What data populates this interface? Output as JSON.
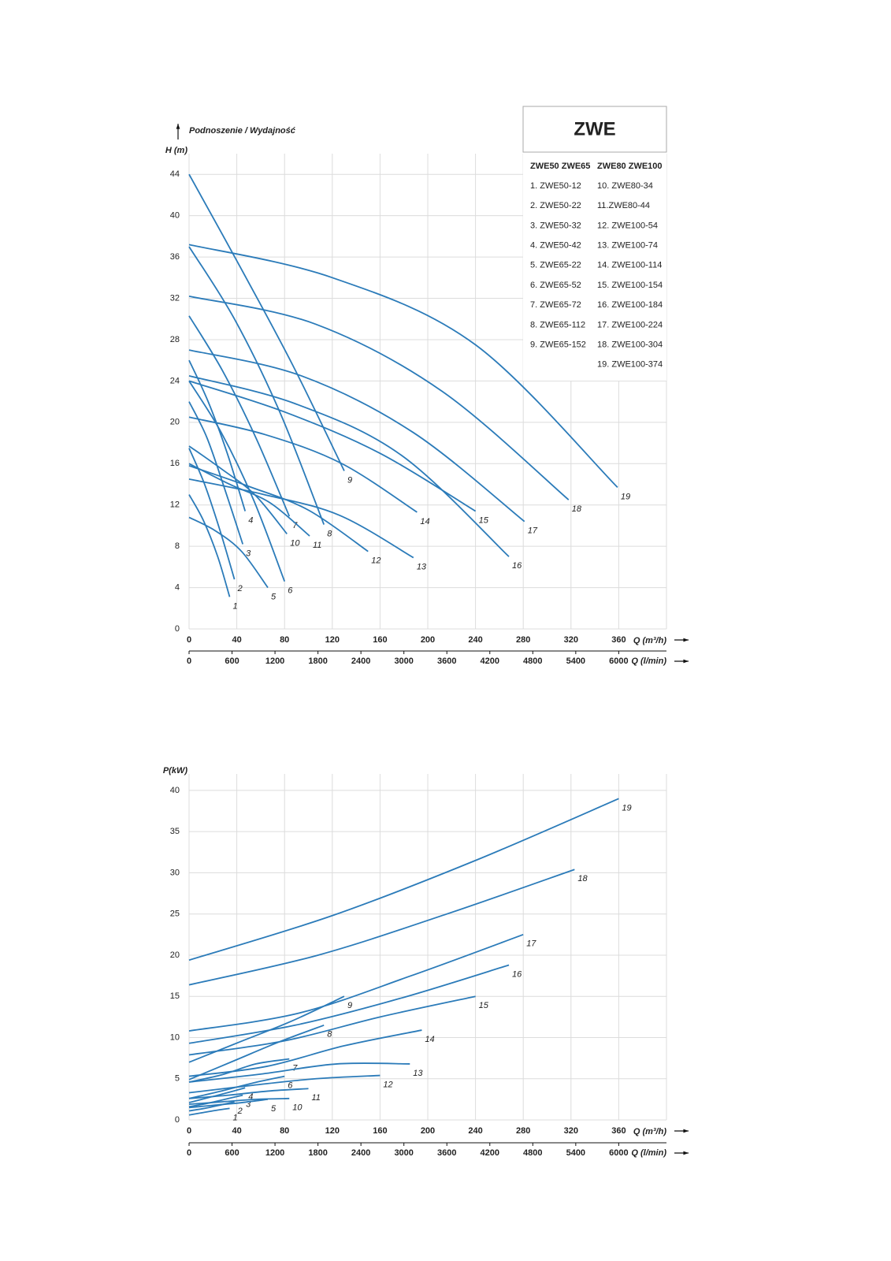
{
  "chart_data": [
    {
      "type": "line",
      "title": "Podnoszenie / Wydajność",
      "y_label": "H (m)",
      "x_label": "Q (m³/h)",
      "x2_label": "Q (l/min)",
      "xlim": [
        0,
        400
      ],
      "xticks": [
        0,
        40,
        80,
        120,
        160,
        200,
        240,
        280,
        320,
        360
      ],
      "x2lim": [
        0,
        6667
      ],
      "x2ticks": [
        0,
        600,
        1200,
        1800,
        2400,
        3000,
        3600,
        4200,
        4800,
        5400,
        6000
      ],
      "ylim": [
        0,
        46
      ],
      "yticks": [
        0,
        4,
        8,
        12,
        16,
        20,
        24,
        28,
        32,
        36,
        40,
        44
      ],
      "grid": true,
      "color": "#2b7bb9",
      "legend": {
        "title": "ZWE",
        "columns": [
          {
            "header": "ZWE50 ZWE65",
            "items": [
              "1. ZWE50-12",
              "2. ZWE50-22",
              "3. ZWE50-32",
              "4. ZWE50-42",
              "5. ZWE65-22",
              "6. ZWE65-52",
              "7. ZWE65-72",
              "8. ZWE65-112",
              "9. ZWE65-152"
            ]
          },
          {
            "header": "ZWE80 ZWE100",
            "items": [
              "10. ZWE80-34",
              "11.ZWE80-44",
              "12. ZWE100-54",
              "13. ZWE100-74",
              "14. ZWE100-114",
              "15. ZWE100-154",
              "16. ZWE100-184",
              "17. ZWE100-224",
              "18. ZWE100-304",
              "19. ZWE100-374"
            ]
          }
        ]
      },
      "series": [
        {
          "name": "1",
          "x": [
            0,
            12,
            24,
            34
          ],
          "values": [
            13,
            10.5,
            7,
            3.1
          ]
        },
        {
          "name": "2",
          "x": [
            0,
            13,
            26,
            38
          ],
          "values": [
            17.5,
            14,
            9.5,
            4.8
          ]
        },
        {
          "name": "3",
          "x": [
            0,
            15,
            30,
            45
          ],
          "values": [
            22,
            18.5,
            13.5,
            8.2
          ]
        },
        {
          "name": "4",
          "x": [
            0,
            16,
            32,
            47
          ],
          "values": [
            26,
            22,
            17,
            11.4
          ]
        },
        {
          "name": "5",
          "x": [
            0,
            22,
            44,
            66
          ],
          "values": [
            10.8,
            9.5,
            7.5,
            4
          ]
        },
        {
          "name": "6",
          "x": [
            0,
            27,
            54,
            80
          ],
          "values": [
            24,
            19,
            12.5,
            4.6
          ]
        },
        {
          "name": "7",
          "x": [
            0,
            28,
            56,
            84
          ],
          "values": [
            30.3,
            25,
            18.5,
            10.9
          ]
        },
        {
          "name": "8",
          "x": [
            0,
            38,
            76,
            113
          ],
          "values": [
            37,
            30,
            21,
            10.1
          ]
        },
        {
          "name": "9",
          "x": [
            0,
            43,
            87,
            130
          ],
          "values": [
            44,
            35,
            25.5,
            15.3
          ]
        },
        {
          "name": "10",
          "x": [
            0,
            27,
            55,
            82
          ],
          "values": [
            17.7,
            15.5,
            13,
            9.2
          ]
        },
        {
          "name": "11",
          "x": [
            0,
            34,
            68,
            101
          ],
          "values": [
            16,
            14,
            12.2,
            9
          ]
        },
        {
          "name": "12",
          "x": [
            0,
            50,
            100,
            150
          ],
          "values": [
            15.8,
            13.8,
            11.5,
            7.5
          ]
        },
        {
          "name": "13",
          "x": [
            0,
            63,
            126,
            188
          ],
          "values": [
            14.5,
            13,
            11,
            6.9
          ]
        },
        {
          "name": "14",
          "x": [
            0,
            64,
            128,
            191
          ],
          "values": [
            20.5,
            18.8,
            16,
            11.3
          ]
        },
        {
          "name": "15",
          "x": [
            0,
            80,
            160,
            240
          ],
          "values": [
            24,
            21,
            17,
            11.4
          ]
        },
        {
          "name": "16",
          "x": [
            0,
            89,
            178,
            268
          ],
          "values": [
            24.5,
            21.8,
            16.8,
            7
          ]
        },
        {
          "name": "17",
          "x": [
            0,
            94,
            188,
            281
          ],
          "values": [
            27,
            24.5,
            19,
            10.4
          ]
        },
        {
          "name": "18",
          "x": [
            0,
            106,
            212,
            318
          ],
          "values": [
            32.2,
            29.5,
            23,
            12.5
          ]
        },
        {
          "name": "19",
          "x": [
            0,
            120,
            240,
            359
          ],
          "values": [
            37.2,
            34,
            27.5,
            13.7
          ]
        }
      ]
    },
    {
      "type": "line",
      "y_label": "P(kW)",
      "x_label": "Q (m³/h)",
      "x2_label": "Q (l/min)",
      "xlim": [
        0,
        400
      ],
      "xticks": [
        0,
        40,
        80,
        120,
        160,
        200,
        240,
        280,
        320,
        360
      ],
      "x2lim": [
        0,
        6667
      ],
      "x2ticks": [
        0,
        600,
        1200,
        1800,
        2400,
        3000,
        3600,
        4200,
        4800,
        5400,
        6000
      ],
      "ylim": [
        0,
        42
      ],
      "yticks": [
        0,
        5,
        10,
        15,
        20,
        25,
        30,
        35,
        40
      ],
      "grid": true,
      "color": "#2b7bb9",
      "series": [
        {
          "name": "1",
          "x": [
            0,
            12,
            24,
            34
          ],
          "values": [
            0.6,
            0.9,
            1.2,
            1.4
          ]
        },
        {
          "name": "2",
          "x": [
            0,
            13,
            26,
            38
          ],
          "values": [
            1.1,
            1.4,
            1.8,
            2.2
          ]
        },
        {
          "name": "3",
          "x": [
            0,
            15,
            30,
            45
          ],
          "values": [
            1.6,
            2,
            2.5,
            3
          ]
        },
        {
          "name": "4",
          "x": [
            0,
            16,
            32,
            47
          ],
          "values": [
            2.1,
            2.7,
            3.3,
            3.9
          ]
        },
        {
          "name": "5",
          "x": [
            0,
            22,
            44,
            66
          ],
          "values": [
            1.5,
            1.8,
            2.1,
            2.5
          ]
        },
        {
          "name": "6",
          "x": [
            0,
            27,
            54,
            80
          ],
          "values": [
            2.6,
            3.5,
            4.5,
            5.3
          ]
        },
        {
          "name": "7",
          "x": [
            0,
            28,
            56,
            84
          ],
          "values": [
            4.6,
            5.5,
            6.8,
            7.4
          ]
        },
        {
          "name": "8",
          "x": [
            0,
            38,
            76,
            113
          ],
          "values": [
            4.9,
            7.2,
            9.5,
            11.5
          ]
        },
        {
          "name": "9",
          "x": [
            0,
            43,
            86,
            130
          ],
          "values": [
            7,
            9.5,
            12,
            15
          ]
        },
        {
          "name": "10",
          "x": [
            0,
            28,
            56,
            84
          ],
          "values": [
            1.9,
            2.2,
            2.5,
            2.6
          ]
        },
        {
          "name": "11",
          "x": [
            0,
            33,
            66,
            100
          ],
          "values": [
            2.6,
            3,
            3.5,
            3.8
          ]
        },
        {
          "name": "12",
          "x": [
            0,
            53,
            106,
            160
          ],
          "values": [
            3.3,
            4.2,
            5,
            5.4
          ]
        },
        {
          "name": "13",
          "x": [
            0,
            62,
            124,
            185
          ],
          "values": [
            4.6,
            5.6,
            6.8,
            6.8
          ]
        },
        {
          "name": "14",
          "x": [
            0,
            65,
            130,
            195
          ],
          "values": [
            5.3,
            6.5,
            9,
            10.9
          ]
        },
        {
          "name": "15",
          "x": [
            0,
            80,
            160,
            240
          ],
          "values": [
            7.9,
            9.6,
            12.5,
            15
          ]
        },
        {
          "name": "16",
          "x": [
            0,
            89,
            178,
            268
          ],
          "values": [
            9.3,
            11.5,
            14.8,
            18.8
          ]
        },
        {
          "name": "17",
          "x": [
            0,
            93,
            186,
            280
          ],
          "values": [
            10.8,
            13,
            17.5,
            22.5
          ]
        },
        {
          "name": "18",
          "x": [
            0,
            108,
            216,
            323
          ],
          "values": [
            16.4,
            20,
            25,
            30.4
          ]
        },
        {
          "name": "19",
          "x": [
            0,
            120,
            240,
            360
          ],
          "values": [
            19.4,
            24.8,
            31.5,
            39
          ]
        }
      ]
    }
  ]
}
